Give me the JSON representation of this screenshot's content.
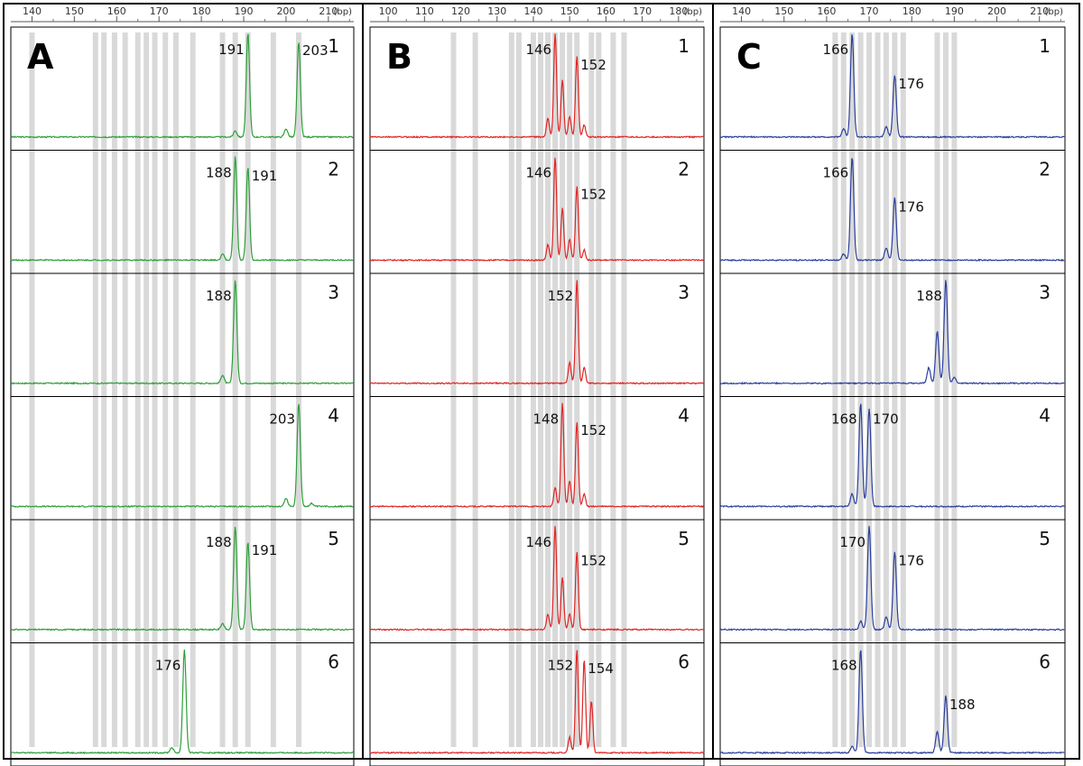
{
  "chart_data": [
    {
      "type": "line",
      "panel_label": "A",
      "color": "#2e9e3a",
      "axis": {
        "xlim": [
          135,
          216
        ],
        "ticks": [
          140,
          150,
          160,
          170,
          180,
          190,
          200,
          210
        ],
        "unit": "(bp)"
      },
      "bins": [
        140,
        155,
        157,
        159.5,
        162,
        165,
        167,
        169,
        171.5,
        174,
        178,
        185,
        188,
        191,
        197,
        203
      ],
      "rows": [
        {
          "lane": "1",
          "labels": [
            "191",
            "203"
          ],
          "peaks": [
            [
              191,
              1.0
            ],
            [
              203,
              0.92
            ],
            [
              200,
              0.08
            ],
            [
              188,
              0.06
            ]
          ]
        },
        {
          "lane": "2",
          "labels": [
            "188",
            "191"
          ],
          "peaks": [
            [
              188,
              1.0
            ],
            [
              191,
              0.9
            ],
            [
              185,
              0.06
            ]
          ]
        },
        {
          "lane": "3",
          "labels": [
            "188"
          ],
          "peaks": [
            [
              188,
              1.0
            ],
            [
              185,
              0.08
            ]
          ]
        },
        {
          "lane": "4",
          "labels": [
            "203"
          ],
          "peaks": [
            [
              203,
              1.0
            ],
            [
              200,
              0.08
            ],
            [
              206,
              0.03
            ]
          ]
        },
        {
          "lane": "5",
          "labels": [
            "188",
            "191"
          ],
          "peaks": [
            [
              188,
              1.0
            ],
            [
              191,
              0.85
            ],
            [
              185,
              0.06
            ]
          ]
        },
        {
          "lane": "6",
          "labels": [
            "176"
          ],
          "peaks": [
            [
              176,
              1.0
            ],
            [
              173,
              0.05
            ]
          ]
        }
      ]
    },
    {
      "type": "line",
      "panel_label": "B",
      "color": "#e02525",
      "axis": {
        "xlim": [
          95,
          187
        ],
        "ticks": [
          100,
          110,
          120,
          130,
          140,
          150,
          160,
          170,
          180
        ],
        "unit": "(bp)"
      },
      "bins": [
        118,
        124,
        134,
        136,
        140,
        142,
        144,
        146,
        148,
        150,
        152,
        156,
        158,
        162,
        165
      ],
      "rows": [
        {
          "lane": "1",
          "labels": [
            "146",
            "152"
          ],
          "peaks": [
            [
              146,
              1.0
            ],
            [
              148,
              0.55
            ],
            [
              152,
              0.78
            ],
            [
              150,
              0.2
            ],
            [
              144,
              0.18
            ],
            [
              154,
              0.12
            ]
          ]
        },
        {
          "lane": "2",
          "labels": [
            "146",
            "152"
          ],
          "peaks": [
            [
              146,
              1.0
            ],
            [
              148,
              0.5
            ],
            [
              152,
              0.72
            ],
            [
              150,
              0.2
            ],
            [
              144,
              0.15
            ],
            [
              154,
              0.1
            ]
          ]
        },
        {
          "lane": "3",
          "labels": [
            "152"
          ],
          "peaks": [
            [
              152,
              1.0
            ],
            [
              150,
              0.2
            ],
            [
              154,
              0.15
            ]
          ]
        },
        {
          "lane": "4",
          "labels": [
            "148",
            "152"
          ],
          "peaks": [
            [
              148,
              1.0
            ],
            [
              152,
              0.82
            ],
            [
              150,
              0.25
            ],
            [
              146,
              0.18
            ],
            [
              154,
              0.12
            ]
          ]
        },
        {
          "lane": "5",
          "labels": [
            "146",
            "152"
          ],
          "peaks": [
            [
              146,
              1.0
            ],
            [
              148,
              0.5
            ],
            [
              152,
              0.75
            ],
            [
              144,
              0.15
            ],
            [
              150,
              0.15
            ]
          ]
        },
        {
          "lane": "6",
          "labels": [
            "152",
            "154"
          ],
          "peaks": [
            [
              152,
              1.0
            ],
            [
              154,
              0.9
            ],
            [
              156,
              0.5
            ],
            [
              150,
              0.15
            ]
          ]
        }
      ]
    },
    {
      "type": "line",
      "panel_label": "C",
      "color": "#2a3e9c",
      "axis": {
        "xlim": [
          135,
          216
        ],
        "ticks": [
          140,
          150,
          160,
          170,
          180,
          190,
          200,
          210
        ],
        "unit": "(bp)"
      },
      "bins": [
        162,
        164,
        166,
        168,
        170,
        172,
        174,
        176,
        178,
        186,
        188,
        190
      ],
      "rows": [
        {
          "lane": "1",
          "labels": [
            "166",
            "176"
          ],
          "peaks": [
            [
              166,
              1.0
            ],
            [
              176,
              0.6
            ],
            [
              174,
              0.1
            ],
            [
              164,
              0.08
            ]
          ]
        },
        {
          "lane": "2",
          "labels": [
            "166",
            "176"
          ],
          "peaks": [
            [
              166,
              1.0
            ],
            [
              176,
              0.6
            ],
            [
              174,
              0.12
            ],
            [
              164,
              0.06
            ]
          ]
        },
        {
          "lane": "3",
          "labels": [
            "188"
          ],
          "peaks": [
            [
              188,
              1.0
            ],
            [
              186,
              0.5
            ],
            [
              184,
              0.15
            ],
            [
              190,
              0.06
            ]
          ]
        },
        {
          "lane": "4",
          "labels": [
            "168",
            "170"
          ],
          "peaks": [
            [
              170,
              0.95
            ],
            [
              168,
              1.0
            ],
            [
              166,
              0.12
            ]
          ]
        },
        {
          "lane": "5",
          "labels": [
            "170",
            "176"
          ],
          "peaks": [
            [
              170,
              1.0
            ],
            [
              176,
              0.75
            ],
            [
              174,
              0.12
            ],
            [
              168,
              0.08
            ]
          ]
        },
        {
          "lane": "6",
          "labels": [
            "168",
            "188"
          ],
          "peaks": [
            [
              168,
              1.0
            ],
            [
              188,
              0.55
            ],
            [
              186,
              0.2
            ],
            [
              166,
              0.06
            ]
          ]
        }
      ]
    }
  ]
}
